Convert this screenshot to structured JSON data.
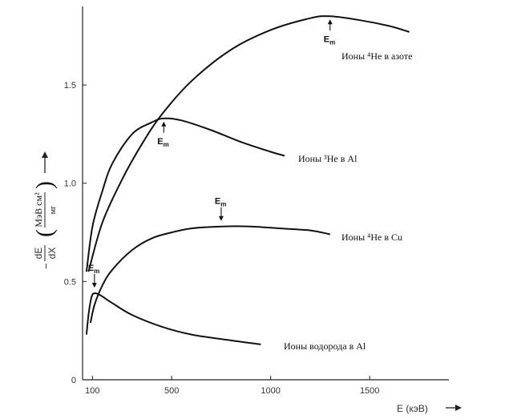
{
  "chart_data": {
    "type": "line",
    "xlim": [
      50,
      1900
    ],
    "ylim": [
      0,
      1.9
    ],
    "x_ticks": [
      {
        "value": 100,
        "label": "100"
      },
      {
        "value": 500,
        "label": "500"
      },
      {
        "value": 1000,
        "label": "1000"
      },
      {
        "value": 1500,
        "label": "1500"
      }
    ],
    "y_ticks": [
      {
        "value": 0,
        "label": "0"
      },
      {
        "value": 0.5,
        "label": "0.5"
      },
      {
        "value": 1.0,
        "label": "1.0"
      },
      {
        "value": 1.5,
        "label": "1.5"
      }
    ],
    "xlabel": "E (кэВ)",
    "ylabel": {
      "prefix": "−",
      "num": "dE",
      "den": "dX",
      "unit_num": "МэВ см²",
      "unit_den": "мг"
    },
    "series": [
      {
        "name": "Ионы ⁴He в азоте",
        "points": [
          [
            80,
            0.55
          ],
          [
            150,
            0.8
          ],
          [
            250,
            1.02
          ],
          [
            350,
            1.2
          ],
          [
            450,
            1.35
          ],
          [
            600,
            1.52
          ],
          [
            800,
            1.68
          ],
          [
            1000,
            1.78
          ],
          [
            1200,
            1.84
          ],
          [
            1300,
            1.85
          ],
          [
            1450,
            1.83
          ],
          [
            1600,
            1.8
          ],
          [
            1700,
            1.77
          ]
        ]
      },
      {
        "name": "Ионы ³He в Al",
        "points": [
          [
            70,
            0.55
          ],
          [
            100,
            0.78
          ],
          [
            150,
            0.96
          ],
          [
            200,
            1.1
          ],
          [
            300,
            1.25
          ],
          [
            400,
            1.31
          ],
          [
            460,
            1.33
          ],
          [
            550,
            1.32
          ],
          [
            700,
            1.27
          ],
          [
            850,
            1.21
          ],
          [
            1000,
            1.16
          ],
          [
            1070,
            1.14
          ]
        ]
      },
      {
        "name": "Ионы ⁴He в Cu",
        "points": [
          [
            90,
            0.29
          ],
          [
            110,
            0.38
          ],
          [
            150,
            0.48
          ],
          [
            200,
            0.56
          ],
          [
            300,
            0.66
          ],
          [
            400,
            0.72
          ],
          [
            500,
            0.75
          ],
          [
            600,
            0.77
          ],
          [
            750,
            0.78
          ],
          [
            900,
            0.78
          ],
          [
            1050,
            0.77
          ],
          [
            1200,
            0.76
          ],
          [
            1300,
            0.74
          ]
        ]
      },
      {
        "name": "Ионы водорода в Al",
        "points": [
          [
            70,
            0.23
          ],
          [
            80,
            0.33
          ],
          [
            95,
            0.42
          ],
          [
            110,
            0.44
          ],
          [
            140,
            0.43
          ],
          [
            200,
            0.39
          ],
          [
            300,
            0.33
          ],
          [
            450,
            0.27
          ],
          [
            600,
            0.23
          ],
          [
            800,
            0.2
          ],
          [
            950,
            0.18
          ]
        ]
      }
    ],
    "annotations": [
      {
        "text": "Ионы ⁴He в азоте"
      },
      {
        "text": "Ионы ³He в Al"
      },
      {
        "text": "Ионы ⁴He в Cu"
      },
      {
        "text": "Ионы водорода в Al"
      }
    ],
    "em_markers": [
      {
        "label": "E",
        "sub": "m",
        "x": 1300,
        "y": 1.85,
        "dir": "up"
      },
      {
        "label": "E",
        "sub": "m",
        "x": 460,
        "y": 1.33,
        "dir": "up"
      },
      {
        "label": "E",
        "sub": "m",
        "x": 750,
        "y": 0.78,
        "dir": "down"
      },
      {
        "label": "E",
        "sub": "m",
        "x": 110,
        "y": 0.44,
        "dir": "down"
      }
    ]
  }
}
